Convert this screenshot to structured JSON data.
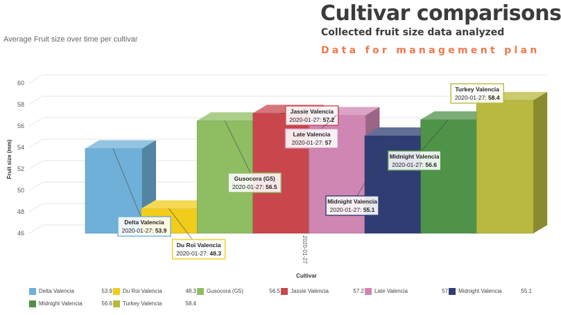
{
  "header": {
    "title": "Cultivar comparisons",
    "subtitle": "Collected fruit size data analyzed",
    "tagline": "Data for management plan"
  },
  "chart_data": {
    "type": "bar",
    "title": "Average Fruit size over time per cultivar",
    "xlabel": "Cultivar",
    "ylabel": "Fruit size (mm)",
    "ylim": [
      46,
      60
    ],
    "yticks": [
      46,
      48,
      50,
      52,
      54,
      56,
      58,
      60
    ],
    "grid": true,
    "legend_position": "bottom",
    "categories": [
      "2020-01-27"
    ],
    "series": [
      {
        "name": "Delta Valencia",
        "values": [
          53.9
        ],
        "color": "#6fb0d8"
      },
      {
        "name": "Du Roi Valencia",
        "values": [
          48.3
        ],
        "color": "#f2cc1b"
      },
      {
        "name": "Gusocora (G5)",
        "values": [
          56.5
        ],
        "color": "#8fbd62"
      },
      {
        "name": "Jassie Valencia",
        "values": [
          57.2
        ],
        "color": "#c8474c"
      },
      {
        "name": "Late Valencia",
        "values": [
          57
        ],
        "color": "#cf86b3"
      },
      {
        "name": "Midnight Valencia",
        "values": [
          55.1
        ],
        "color": "#2f3d74"
      },
      {
        "name": "Midnight Valencia",
        "values": [
          56.6
        ],
        "color": "#4f9348"
      },
      {
        "name": "Turkey Valencia",
        "values": [
          58.4
        ],
        "color": "#b8b93e"
      }
    ]
  }
}
